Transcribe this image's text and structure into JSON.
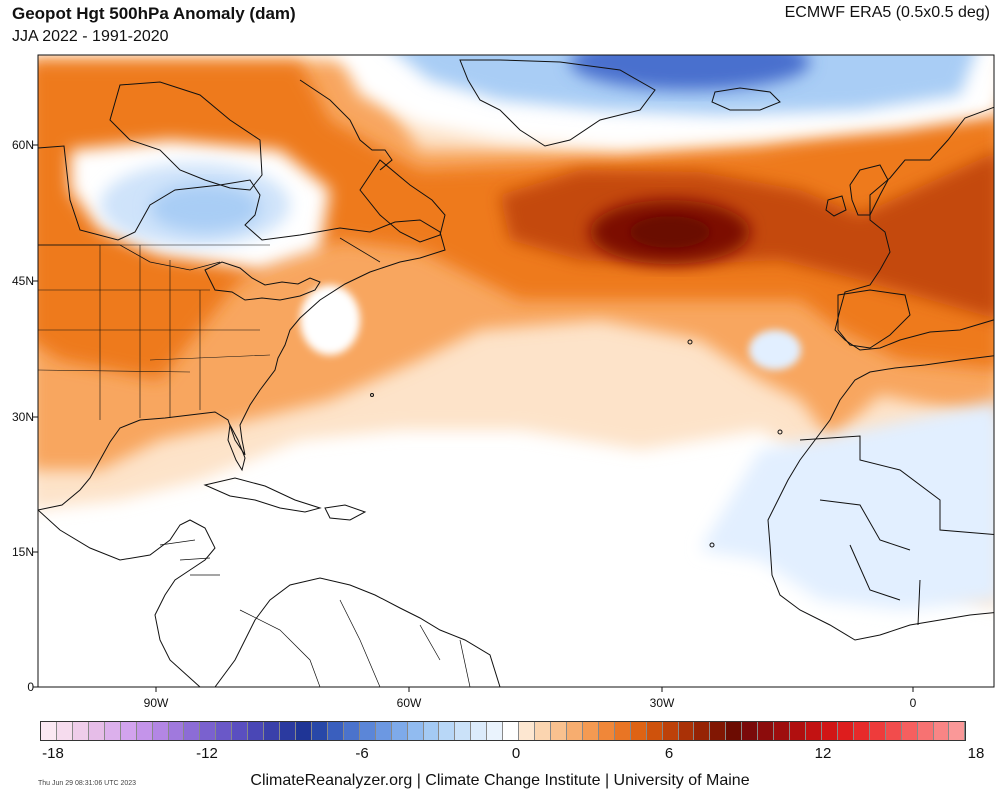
{
  "header": {
    "title": "Geopot Hgt 500hPa Anomaly (dam)",
    "subtitle": "JJA 2022 - 1991-2020",
    "source": "ECMWF ERA5 (0.5x0.5 deg)"
  },
  "map": {
    "lat_labels": [
      "60N",
      "45N",
      "30N",
      "15N",
      "0"
    ],
    "lon_labels": [
      "90W",
      "60W",
      "30W",
      "0"
    ],
    "colors": {
      "negative_strong": "#4a6fce",
      "negative": "#a9cdf5",
      "negative_light": "#e2efff",
      "positive_light": "#fde3c9",
      "positive": "#f8a65e",
      "positive_mid": "#ee7a1e",
      "positive_strong": "#c44a0c",
      "positive_max": "#7c0c06"
    }
  },
  "colorbar": {
    "tick_labels": [
      "-18",
      "-12",
      "-6",
      "0",
      "6",
      "12",
      "18"
    ],
    "colors": [
      "#fbe9f3",
      "#f6dcee",
      "#efcdea",
      "#e6bde8",
      "#dcb0ec",
      "#d2a3ee",
      "#c494ea",
      "#b386e4",
      "#a079dd",
      "#8c6cd6",
      "#7a61cf",
      "#6a58c8",
      "#5a4fc0",
      "#4a47b6",
      "#3a40aa",
      "#2b3aa0",
      "#1f3596",
      "#2848a8",
      "#3a5fbe",
      "#4b73cc",
      "#5b86d8",
      "#6c98e2",
      "#7eaaea",
      "#91bbf0",
      "#a4caf4",
      "#b8d7f7",
      "#cbe2f9",
      "#dcebfb",
      "#eaf3fd",
      "#ffffff",
      "#fde7d1",
      "#fbd5b0",
      "#f9c18f",
      "#f7ad6f",
      "#f49a52",
      "#f08739",
      "#e97524",
      "#de6314",
      "#cf520c",
      "#bd4109",
      "#aa3106",
      "#962304",
      "#811703",
      "#6c0c02",
      "#7a0a0a",
      "#8c0c0c",
      "#9e0e0e",
      "#b00f0f",
      "#c21212",
      "#d11616",
      "#de1d1d",
      "#e72a2a",
      "#ee3b3b",
      "#f24c4c",
      "#f55f5f",
      "#f77272",
      "#f98585",
      "#fa9898"
    ]
  },
  "footer": {
    "timestamp": "Thu Jun 29 08:31:06 UTC 2023",
    "credit": "ClimateReanalyzer.org | Climate Change Institute | University of Maine"
  }
}
